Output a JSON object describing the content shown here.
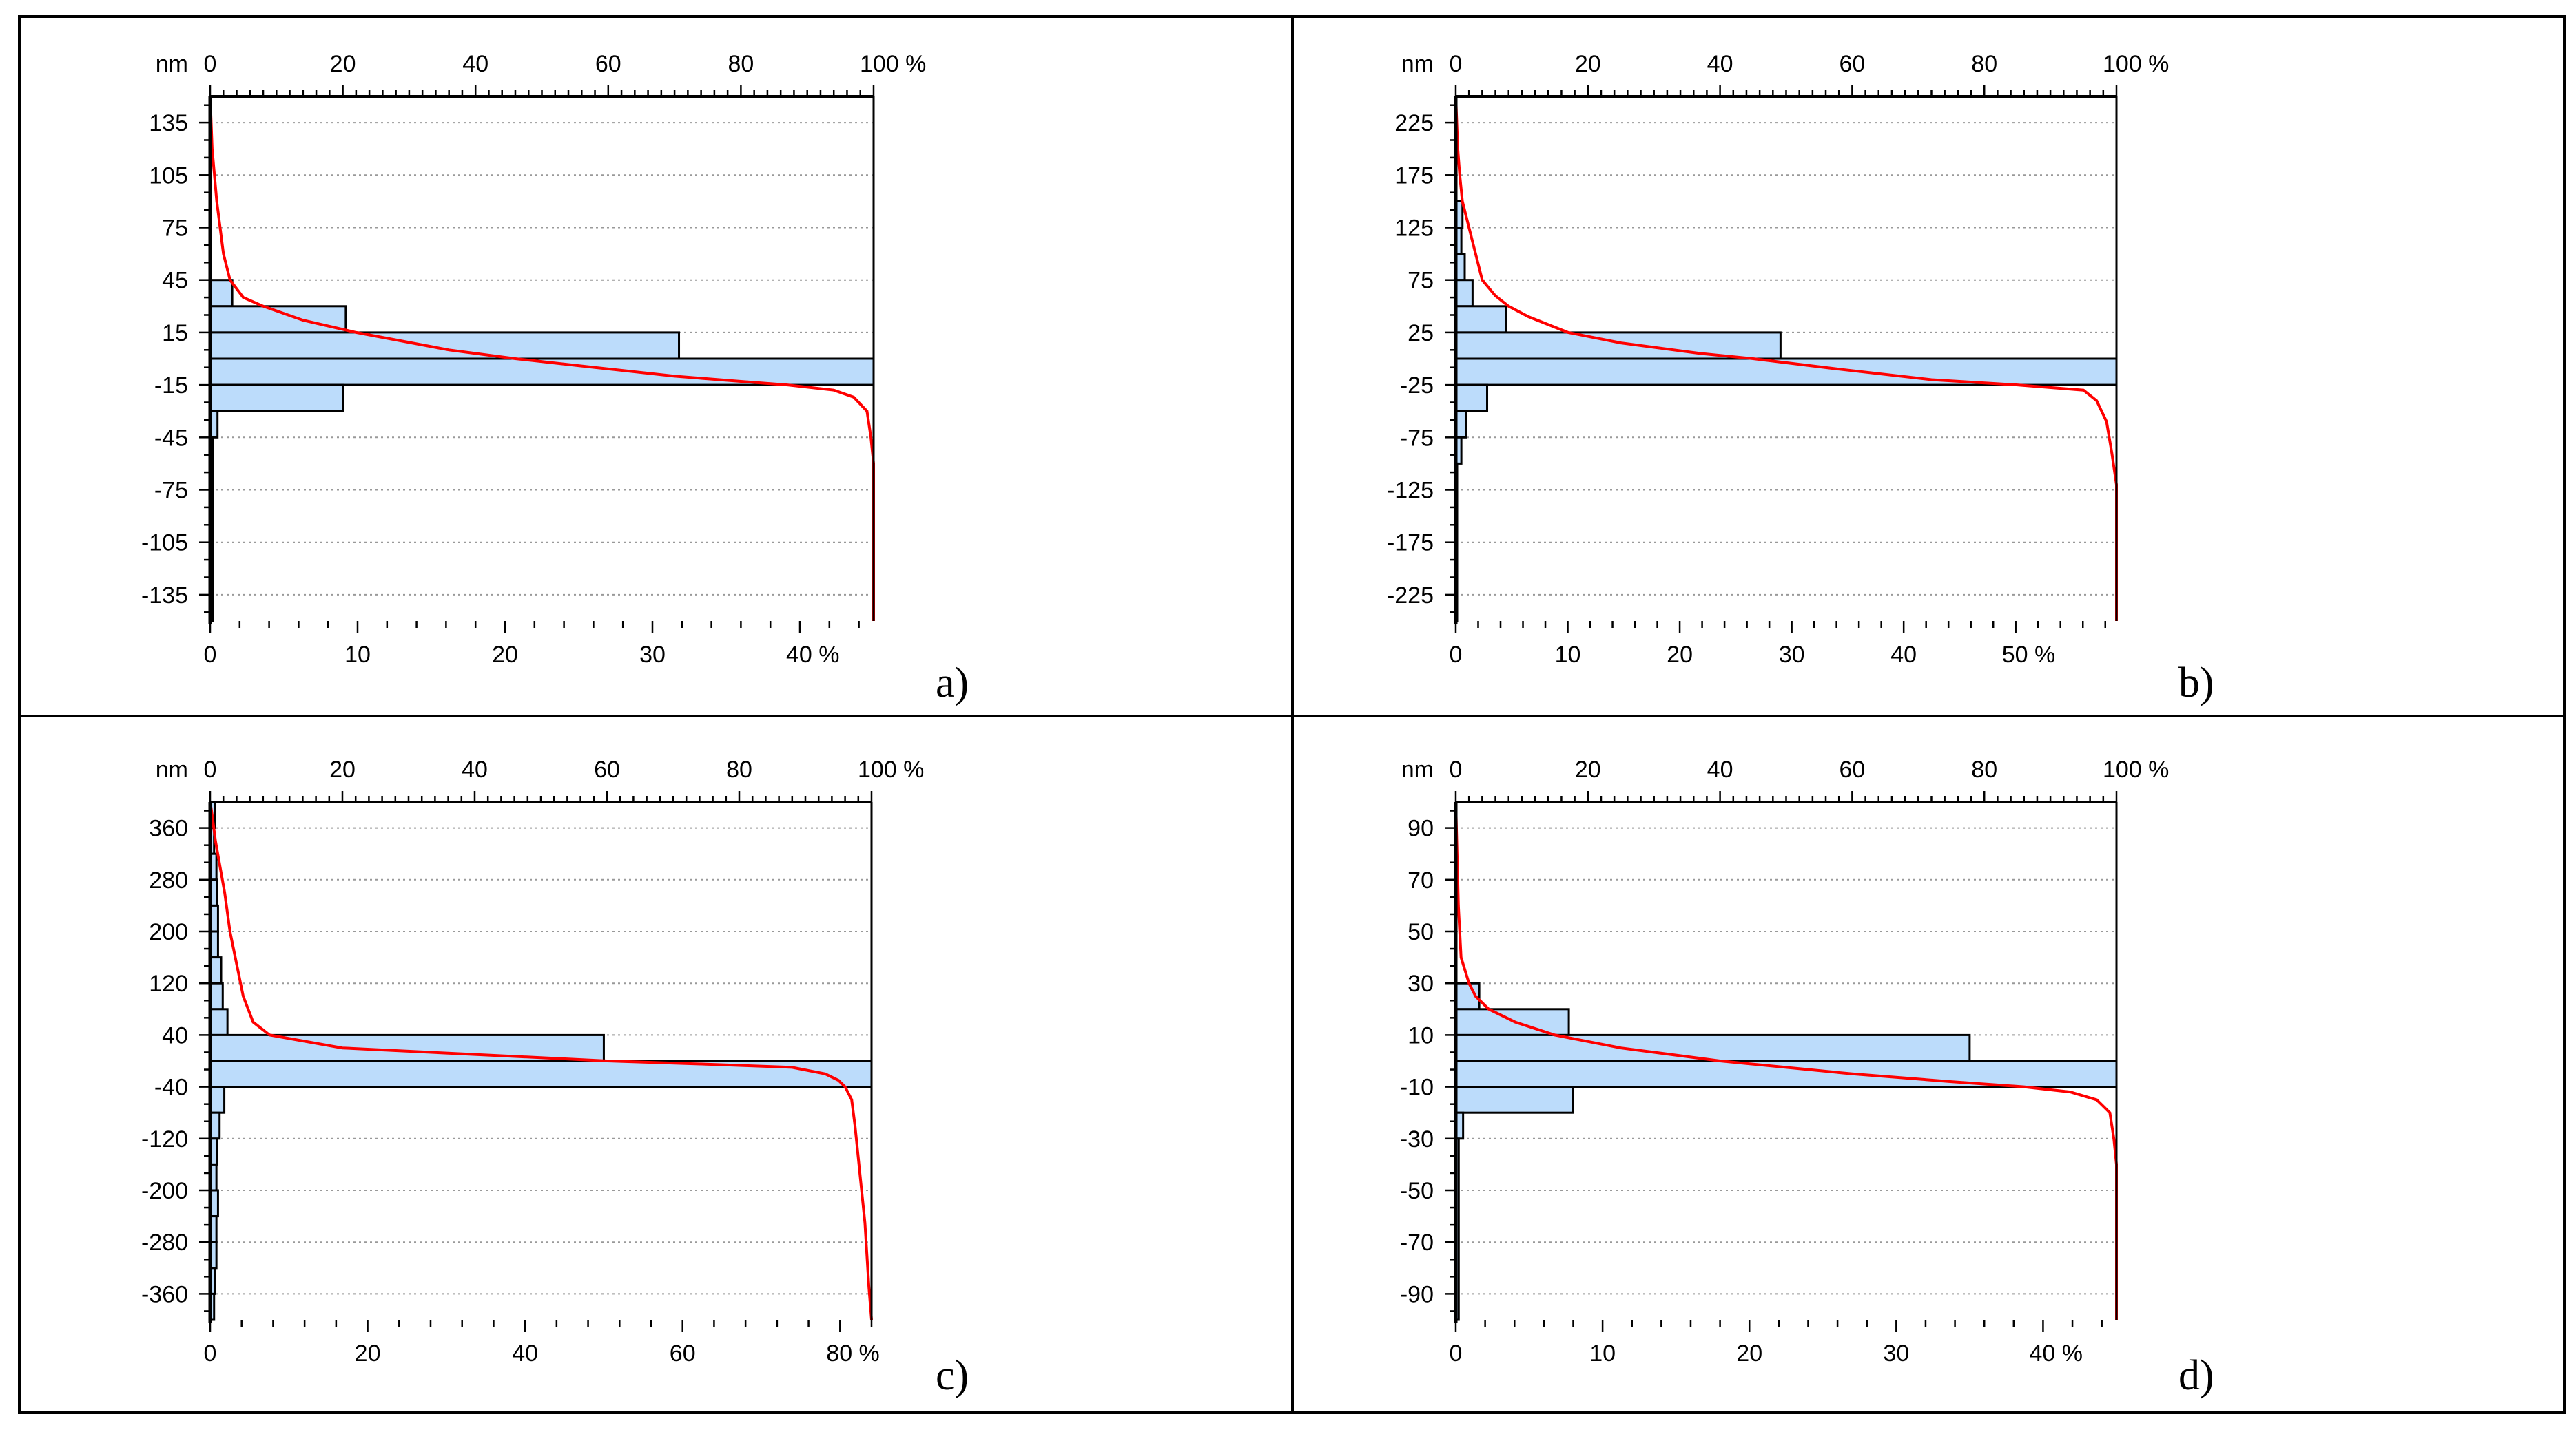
{
  "figure": {
    "panel_labels": [
      "a)",
      "b)",
      "c)",
      "d)"
    ],
    "colors": {
      "bar_fill": "#bcdcfb",
      "curve": "#ff0000",
      "frame": "#000000",
      "grid": "#999999"
    }
  },
  "chart_data": [
    {
      "type": "bar",
      "panel": "a)",
      "orientation": "horizontal",
      "y_unit_label": "nm",
      "y_range": [
        -150,
        150
      ],
      "y_ticks": [
        "135",
        "105",
        "75",
        "45",
        "15",
        "-15",
        "-45",
        "-75",
        "-105",
        "-135"
      ],
      "y_tick_values": [
        135,
        105,
        75,
        45,
        15,
        -15,
        -45,
        -75,
        -105,
        -135
      ],
      "bottom_axis": {
        "range": [
          0,
          45
        ],
        "ticks": [
          "0",
          "10",
          "20",
          "30",
          "40 %"
        ],
        "tick_values": [
          0,
          10,
          20,
          30,
          40
        ]
      },
      "top_axis": {
        "range": [
          0,
          100
        ],
        "ticks": [
          "0",
          "20",
          "40",
          "60",
          "80",
          "100 %"
        ],
        "tick_values": [
          0,
          20,
          40,
          60,
          80,
          100
        ]
      },
      "bins": [
        {
          "y0": 30,
          "y1": 45,
          "value": 1.5
        },
        {
          "y0": 15,
          "y1": 30,
          "value": 9.2
        },
        {
          "y0": 0,
          "y1": 15,
          "value": 31.8
        },
        {
          "y0": -15,
          "y1": 0,
          "value": 45.0
        },
        {
          "y0": -30,
          "y1": -15,
          "value": 9.0
        },
        {
          "y0": -45,
          "y1": -30,
          "value": 0.5
        },
        {
          "y0": -150,
          "y1": -45,
          "value": 0.2
        }
      ],
      "cumulative_curve": {
        "name": "cumulative %",
        "y": [
          150,
          120,
          90,
          60,
          45,
          35,
          30,
          22,
          15,
          5,
          0,
          -5,
          -10,
          -13,
          -15,
          -18,
          -22,
          -30,
          -45,
          -60,
          -80,
          -100,
          -150
        ],
        "x": [
          0,
          0.3,
          1,
          2,
          3,
          5,
          8,
          14,
          22,
          36,
          46,
          58,
          70,
          80,
          87,
          94,
          97,
          99,
          99.6,
          100,
          100,
          100,
          100
        ]
      }
    },
    {
      "type": "bar",
      "panel": "b)",
      "orientation": "horizontal",
      "y_unit_label": "nm",
      "y_range": [
        -250,
        250
      ],
      "y_ticks": [
        "225",
        "175",
        "125",
        "75",
        "25",
        "-25",
        "-75",
        "-125",
        "-175",
        "-225"
      ],
      "y_tick_values": [
        225,
        175,
        125,
        75,
        25,
        -25,
        -75,
        -125,
        -175,
        -225
      ],
      "bottom_axis": {
        "range": [
          0,
          59
        ],
        "ticks": [
          "0",
          "10",
          "20",
          "30",
          "40",
          "50 %"
        ],
        "tick_values": [
          0,
          10,
          20,
          30,
          40,
          50
        ]
      },
      "top_axis": {
        "range": [
          0,
          100
        ],
        "ticks": [
          "0",
          "20",
          "40",
          "60",
          "80",
          "100 %"
        ],
        "tick_values": [
          0,
          20,
          40,
          60,
          80,
          100
        ]
      },
      "bins": [
        {
          "y0": 125,
          "y1": 150,
          "value": 0.6
        },
        {
          "y0": 100,
          "y1": 125,
          "value": 0.5
        },
        {
          "y0": 75,
          "y1": 100,
          "value": 0.8
        },
        {
          "y0": 50,
          "y1": 75,
          "value": 1.5
        },
        {
          "y0": 25,
          "y1": 50,
          "value": 4.5
        },
        {
          "y0": 0,
          "y1": 25,
          "value": 29.0
        },
        {
          "y0": -25,
          "y1": 0,
          "value": 59.0
        },
        {
          "y0": -50,
          "y1": -25,
          "value": 2.8
        },
        {
          "y0": -75,
          "y1": -50,
          "value": 0.9
        },
        {
          "y0": -100,
          "y1": -75,
          "value": 0.5
        },
        {
          "y0": -250,
          "y1": -100,
          "value": 0.1
        }
      ],
      "cumulative_curve": {
        "name": "cumulative %",
        "y": [
          250,
          200,
          175,
          150,
          125,
          100,
          75,
          60,
          50,
          40,
          25,
          15,
          5,
          0,
          -10,
          -20,
          -25,
          -30,
          -40,
          -60,
          -90,
          -120,
          -250
        ],
        "x": [
          0,
          0.3,
          0.6,
          1,
          2,
          3,
          4,
          6,
          8,
          11,
          17,
          25,
          37,
          45,
          58,
          72,
          85,
          95,
          97,
          98.5,
          99.3,
          100,
          100
        ]
      }
    },
    {
      "type": "bar",
      "panel": "c)",
      "orientation": "horizontal",
      "y_unit_label": "nm",
      "y_range": [
        -400,
        400
      ],
      "y_ticks": [
        "360",
        "280",
        "200",
        "120",
        "40",
        "-40",
        "-120",
        "-200",
        "-280",
        "-360"
      ],
      "y_tick_values": [
        360,
        280,
        200,
        120,
        40,
        -40,
        -120,
        -200,
        -280,
        -360
      ],
      "bottom_axis": {
        "range": [
          0,
          84
        ],
        "ticks": [
          "0",
          "20",
          "40",
          "60",
          "80 %"
        ],
        "tick_values": [
          0,
          20,
          40,
          60,
          80
        ]
      },
      "top_axis": {
        "range": [
          0,
          100
        ],
        "ticks": [
          "0",
          "20",
          "40",
          "60",
          "80",
          "100 %"
        ],
        "tick_values": [
          0,
          20,
          40,
          60,
          80,
          100
        ]
      },
      "bins": [
        {
          "y0": 360,
          "y1": 400,
          "value": 0.6
        },
        {
          "y0": 320,
          "y1": 360,
          "value": 0.5
        },
        {
          "y0": 280,
          "y1": 320,
          "value": 0.8
        },
        {
          "y0": 240,
          "y1": 280,
          "value": 0.9
        },
        {
          "y0": 200,
          "y1": 240,
          "value": 1.0
        },
        {
          "y0": 160,
          "y1": 200,
          "value": 1.0
        },
        {
          "y0": 120,
          "y1": 160,
          "value": 1.4
        },
        {
          "y0": 80,
          "y1": 120,
          "value": 1.6
        },
        {
          "y0": 40,
          "y1": 80,
          "value": 2.2
        },
        {
          "y0": 0,
          "y1": 40,
          "value": 50.0
        },
        {
          "y0": -40,
          "y1": 0,
          "value": 84.0
        },
        {
          "y0": -80,
          "y1": -40,
          "value": 1.8
        },
        {
          "y0": -120,
          "y1": -80,
          "value": 1.2
        },
        {
          "y0": -160,
          "y1": -120,
          "value": 0.9
        },
        {
          "y0": -200,
          "y1": -160,
          "value": 0.8
        },
        {
          "y0": -240,
          "y1": -200,
          "value": 1.0
        },
        {
          "y0": -280,
          "y1": -240,
          "value": 0.8
        },
        {
          "y0": -320,
          "y1": -280,
          "value": 0.8
        },
        {
          "y0": -360,
          "y1": -320,
          "value": 0.6
        },
        {
          "y0": -400,
          "y1": -360,
          "value": 0.5
        }
      ],
      "cumulative_curve": {
        "name": "cumulative %",
        "y": [
          400,
          380,
          340,
          300,
          260,
          200,
          150,
          100,
          60,
          40,
          20,
          10,
          0,
          -5,
          -10,
          -20,
          -30,
          -40,
          -60,
          -100,
          -150,
          -200,
          -250,
          -300,
          -350,
          -400
        ],
        "x": [
          0,
          0.3,
          0.8,
          1.5,
          2.2,
          3,
          4,
          5,
          6.5,
          9,
          20,
          40,
          60,
          75,
          88,
          93,
          95,
          96,
          97,
          97.5,
          98,
          98.5,
          99,
          99.3,
          99.6,
          100
        ]
      }
    },
    {
      "type": "bar",
      "panel": "d)",
      "orientation": "horizontal",
      "y_unit_label": "nm",
      "y_range": [
        -100,
        100
      ],
      "y_ticks": [
        "90",
        "70",
        "50",
        "30",
        "10",
        "-10",
        "-30",
        "-50",
        "-70",
        "-90"
      ],
      "y_tick_values": [
        90,
        70,
        50,
        30,
        10,
        -10,
        -30,
        -50,
        -70,
        -90
      ],
      "bottom_axis": {
        "range": [
          0,
          45
        ],
        "ticks": [
          "0",
          "10",
          "20",
          "30",
          "40 %"
        ],
        "tick_values": [
          0,
          10,
          20,
          30,
          40
        ]
      },
      "top_axis": {
        "range": [
          0,
          100
        ],
        "ticks": [
          "0",
          "20",
          "40",
          "60",
          "80",
          "100 %"
        ],
        "tick_values": [
          0,
          20,
          40,
          60,
          80,
          100
        ]
      },
      "bins": [
        {
          "y0": 20,
          "y1": 30,
          "value": 1.6
        },
        {
          "y0": 10,
          "y1": 20,
          "value": 7.7
        },
        {
          "y0": 0,
          "y1": 10,
          "value": 35.0
        },
        {
          "y0": -10,
          "y1": 0,
          "value": 45.0
        },
        {
          "y0": -20,
          "y1": -10,
          "value": 8.0
        },
        {
          "y0": -30,
          "y1": -20,
          "value": 0.5
        },
        {
          "y0": -100,
          "y1": -30,
          "value": 0.2
        }
      ],
      "cumulative_curve": {
        "name": "cumulative %",
        "y": [
          100,
          80,
          60,
          40,
          30,
          25,
          20,
          15,
          10,
          5,
          0,
          -5,
          -8,
          -10,
          -12,
          -15,
          -20,
          -30,
          -40,
          -60,
          -100
        ],
        "x": [
          0,
          0.2,
          0.4,
          0.8,
          2,
          3,
          5,
          9,
          15,
          25,
          40,
          60,
          75,
          86,
          93,
          97,
          99,
          99.6,
          100,
          100,
          100
        ]
      }
    }
  ]
}
